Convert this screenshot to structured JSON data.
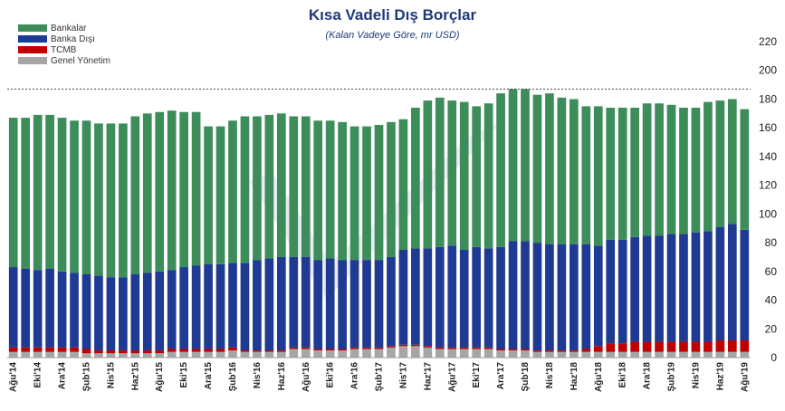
{
  "chart_data": {
    "type": "bar",
    "stacked": true,
    "title": "Kısa Vadeli Dış Borçlar",
    "subtitle": "(Kalan Vadeye Göre, mr USD)",
    "ylim": [
      0,
      220
    ],
    "yticks": [
      0,
      20,
      40,
      60,
      80,
      100,
      120,
      140,
      160,
      180,
      200,
      220
    ],
    "y_axis_position": "right",
    "grid": false,
    "reference_line": 187,
    "legend_position": "top-left",
    "categories": [
      "Ağu'14",
      "Eyl'14",
      "Eki'14",
      "Kas'14",
      "Ara'14",
      "Oca'15",
      "Şub'15",
      "Mar'15",
      "Nis'15",
      "May'15",
      "Haz'15",
      "Tem'15",
      "Ağu'15",
      "Eyl'15",
      "Eki'15",
      "Kas'15",
      "Ara'15",
      "Oca'16",
      "Şub'16",
      "Mar'16",
      "Nis'16",
      "May'16",
      "Haz'16",
      "Tem'16",
      "Ağu'16",
      "Eyl'16",
      "Eki'16",
      "Kas'16",
      "Ara'16",
      "Oca'17",
      "Şub'17",
      "Mar'17",
      "Nis'17",
      "May'17",
      "Haz'17",
      "Tem'17",
      "Ağu'17",
      "Eyl'17",
      "Eki'17",
      "Kas'17",
      "Ara'17",
      "Oca'18",
      "Şub'18",
      "Mar'18",
      "Nis'18",
      "May'18",
      "Haz'18",
      "Tem'18",
      "Ağu'18",
      "Eyl'18",
      "Eki'18",
      "Kas'18",
      "Ara'18",
      "Oca'19",
      "Şub'19",
      "Mar'19",
      "Nis'19",
      "May'19",
      "Haz'19",
      "Tem'19",
      "Ağu'19"
    ],
    "tick_labels_shown": [
      "Ağu'14",
      "Eki'14",
      "Ara'14",
      "Şub'15",
      "Nis'15",
      "Haz'15",
      "Ağu'15",
      "Eki'15",
      "Ara'15",
      "Şub'16",
      "Nis'16",
      "Haz'16",
      "Ağu'16",
      "Eki'16",
      "Ara'16",
      "Şub'17",
      "Nis'17",
      "Haz'17",
      "Ağu'17",
      "Eki'17",
      "Ara'17",
      "Şub'18",
      "Nis'18",
      "Haz'18",
      "Ağu'18",
      "Eki'18",
      "Ara'18",
      "Şub'19",
      "Nis'19",
      "Haz'19",
      "Ağu'19"
    ],
    "series": [
      {
        "name": "Genel Yönetim",
        "color": "#a6a6a6",
        "values": [
          4,
          4,
          4,
          4,
          4,
          4,
          3,
          3,
          3,
          3,
          3,
          3,
          3,
          4,
          4,
          4,
          4,
          4,
          5,
          4,
          4,
          4,
          4,
          6,
          6,
          5,
          5,
          5,
          6,
          6,
          6,
          7,
          8,
          8,
          7,
          6,
          6,
          6,
          6,
          6,
          5,
          5,
          5,
          4,
          4,
          4,
          4,
          4,
          4,
          4,
          4,
          4,
          4,
          4,
          4,
          4,
          4,
          4,
          4,
          4,
          4
        ]
      },
      {
        "name": "TCMB",
        "color": "#c00000",
        "values": [
          3,
          3,
          3,
          3,
          3,
          3,
          3,
          2,
          2,
          2,
          2,
          2,
          2,
          2,
          2,
          2,
          2,
          2,
          2,
          1,
          1,
          1,
          1,
          1,
          1,
          1,
          1,
          1,
          1,
          1,
          1,
          1,
          1,
          1,
          1,
          1,
          1,
          1,
          1,
          1,
          1,
          1,
          1,
          1,
          1,
          1,
          1,
          2,
          4,
          6,
          6,
          7,
          7,
          7,
          7,
          7,
          7,
          7,
          8,
          8,
          8
        ]
      },
      {
        "name": "Banka Dışı",
        "color": "#1f3a93",
        "values": [
          56,
          55,
          54,
          55,
          53,
          52,
          52,
          52,
          51,
          51,
          53,
          54,
          55,
          55,
          57,
          58,
          59,
          59,
          59,
          61,
          63,
          64,
          65,
          63,
          63,
          62,
          63,
          62,
          61,
          61,
          61,
          62,
          66,
          67,
          68,
          70,
          71,
          68,
          70,
          69,
          71,
          75,
          75,
          75,
          74,
          74,
          74,
          73,
          70,
          72,
          72,
          73,
          74,
          74,
          75,
          75,
          76,
          77,
          79,
          81,
          77
        ]
      },
      {
        "name": "Bankalar",
        "color": "#3c8d5a",
        "values": [
          104,
          105,
          108,
          107,
          107,
          106,
          107,
          106,
          107,
          107,
          110,
          111,
          111,
          111,
          108,
          107,
          96,
          96,
          99,
          102,
          100,
          100,
          100,
          98,
          98,
          97,
          96,
          96,
          93,
          93,
          94,
          94,
          91,
          98,
          103,
          104,
          101,
          103,
          98,
          101,
          107,
          106,
          106,
          103,
          105,
          102,
          101,
          96,
          97,
          92,
          92,
          90,
          92,
          92,
          90,
          88,
          87,
          90,
          88,
          87,
          84
        ]
      }
    ]
  }
}
